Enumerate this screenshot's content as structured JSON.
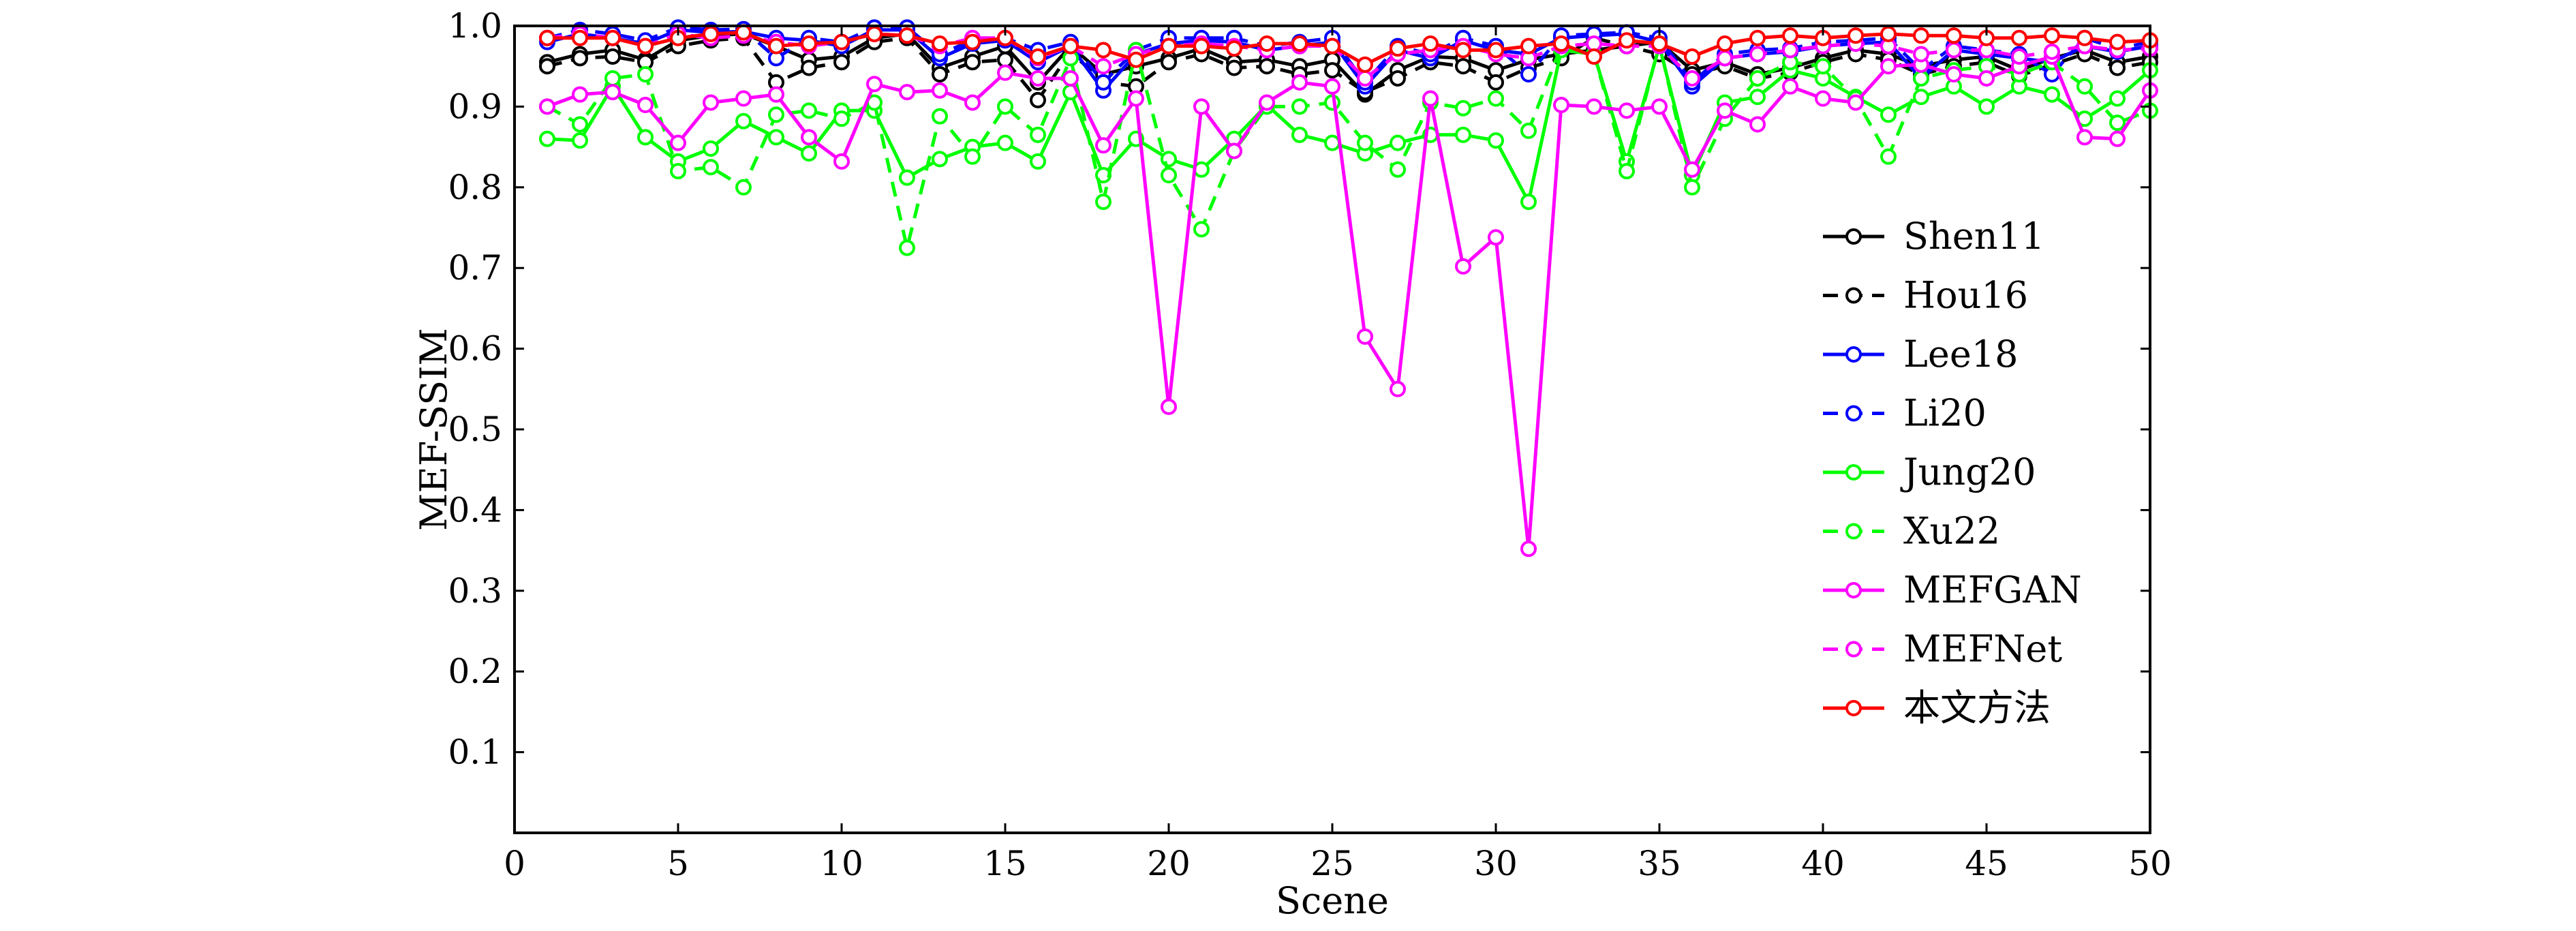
{
  "chart_data": {
    "type": "line",
    "title": "",
    "xlabel": "Scene",
    "ylabel": "MEF-SSIM",
    "xlim": [
      0,
      50
    ],
    "ylim": [
      0,
      1.0
    ],
    "x_ticks": [
      0,
      5,
      10,
      15,
      20,
      25,
      30,
      35,
      40,
      45,
      50
    ],
    "y_ticks": [
      0.1,
      0.2,
      0.3,
      0.4,
      0.5,
      0.6,
      0.7,
      0.8,
      0.9,
      1.0
    ],
    "grid": false,
    "legend_position": "right",
    "x": [
      1,
      2,
      3,
      4,
      5,
      6,
      7,
      8,
      9,
      10,
      11,
      12,
      13,
      14,
      15,
      16,
      17,
      18,
      19,
      20,
      21,
      22,
      23,
      24,
      25,
      26,
      27,
      28,
      29,
      30,
      31,
      32,
      33,
      34,
      35,
      36,
      37,
      38,
      39,
      40,
      41,
      42,
      43,
      44,
      45,
      46,
      47,
      48,
      49,
      50
    ],
    "series": [
      {
        "name": "Shen11",
        "color": "#000000",
        "dash": "solid",
        "values": [
          0.955,
          0.965,
          0.97,
          0.958,
          0.982,
          0.988,
          0.99,
          0.975,
          0.958,
          0.962,
          0.985,
          0.99,
          0.948,
          0.962,
          0.975,
          0.93,
          0.975,
          0.94,
          0.95,
          0.96,
          0.972,
          0.955,
          0.958,
          0.95,
          0.958,
          0.915,
          0.945,
          0.962,
          0.96,
          0.945,
          0.958,
          0.965,
          0.97,
          0.975,
          0.98,
          0.945,
          0.955,
          0.94,
          0.948,
          0.96,
          0.97,
          0.965,
          0.95,
          0.958,
          0.962,
          0.945,
          0.96,
          0.97,
          0.955,
          0.962
        ]
      },
      {
        "name": "Hou16",
        "color": "#000000",
        "dash": "dashed",
        "values": [
          0.95,
          0.96,
          0.962,
          0.955,
          0.975,
          0.982,
          0.985,
          0.93,
          0.948,
          0.955,
          0.98,
          0.985,
          0.94,
          0.955,
          0.958,
          0.908,
          0.968,
          0.93,
          0.925,
          0.955,
          0.965,
          0.948,
          0.95,
          0.94,
          0.945,
          0.918,
          0.935,
          0.955,
          0.95,
          0.93,
          0.948,
          0.96,
          0.985,
          0.975,
          0.965,
          0.94,
          0.95,
          0.935,
          0.942,
          0.955,
          0.965,
          0.958,
          0.94,
          0.95,
          0.955,
          0.938,
          0.952,
          0.965,
          0.948,
          0.955
        ]
      },
      {
        "name": "Lee18",
        "color": "#0000ff",
        "dash": "solid",
        "values": [
          0.98,
          0.99,
          0.985,
          0.978,
          0.995,
          0.992,
          0.993,
          0.985,
          0.982,
          0.975,
          0.995,
          0.995,
          0.96,
          0.978,
          0.982,
          0.955,
          0.975,
          0.92,
          0.965,
          0.978,
          0.982,
          0.98,
          0.97,
          0.975,
          0.98,
          0.925,
          0.97,
          0.96,
          0.982,
          0.97,
          0.965,
          0.985,
          0.988,
          0.99,
          0.98,
          0.925,
          0.96,
          0.965,
          0.968,
          0.975,
          0.978,
          0.98,
          0.935,
          0.97,
          0.965,
          0.96,
          0.955,
          0.975,
          0.968,
          0.975
        ]
      },
      {
        "name": "Li20",
        "color": "#0000ff",
        "dash": "dashed",
        "values": [
          0.985,
          0.995,
          0.99,
          0.982,
          0.998,
          0.995,
          0.996,
          0.96,
          0.985,
          0.98,
          0.998,
          0.998,
          0.965,
          0.982,
          0.985,
          0.97,
          0.98,
          0.93,
          0.97,
          0.985,
          0.985,
          0.985,
          0.975,
          0.98,
          0.985,
          0.93,
          0.975,
          0.965,
          0.985,
          0.975,
          0.94,
          0.988,
          0.99,
          0.992,
          0.985,
          0.93,
          0.965,
          0.97,
          0.972,
          0.98,
          0.982,
          0.985,
          0.945,
          0.975,
          0.97,
          0.965,
          0.94,
          0.985,
          0.972,
          0.98
        ]
      },
      {
        "name": "Jung20",
        "color": "#00ff00",
        "dash": "solid",
        "values": [
          0.86,
          0.858,
          0.925,
          0.862,
          0.832,
          0.848,
          0.882,
          0.862,
          0.842,
          0.895,
          0.895,
          0.812,
          0.835,
          0.85,
          0.855,
          0.832,
          0.918,
          0.815,
          0.86,
          0.835,
          0.822,
          0.86,
          0.902,
          0.865,
          0.855,
          0.842,
          0.855,
          0.865,
          0.865,
          0.858,
          0.782,
          0.97,
          0.965,
          0.832,
          0.975,
          0.815,
          0.905,
          0.912,
          0.945,
          0.935,
          0.912,
          0.89,
          0.912,
          0.925,
          0.9,
          0.925,
          0.915,
          0.885,
          0.91,
          0.945
        ]
      },
      {
        "name": "Xu22",
        "color": "#00ff00",
        "dash": "dashed",
        "values": [
          0.9,
          0.878,
          0.935,
          0.94,
          0.82,
          0.825,
          0.8,
          0.89,
          0.895,
          0.885,
          0.905,
          0.725,
          0.888,
          0.838,
          0.9,
          0.865,
          0.96,
          0.782,
          0.97,
          0.815,
          0.748,
          0.845,
          0.9,
          0.9,
          0.905,
          0.855,
          0.822,
          0.905,
          0.898,
          0.91,
          0.87,
          0.975,
          0.965,
          0.82,
          0.978,
          0.8,
          0.885,
          0.935,
          0.955,
          0.95,
          0.91,
          0.838,
          0.935,
          0.945,
          0.95,
          0.94,
          0.955,
          0.925,
          0.88,
          0.895
        ]
      },
      {
        "name": "MEFGAN",
        "color": "#ff00ff",
        "dash": "solid",
        "values": [
          0.9,
          0.915,
          0.918,
          0.902,
          0.855,
          0.905,
          0.91,
          0.915,
          0.862,
          0.832,
          0.928,
          0.918,
          0.92,
          0.905,
          0.942,
          0.935,
          0.935,
          0.852,
          0.91,
          0.528,
          0.9,
          0.845,
          0.905,
          0.93,
          0.925,
          0.615,
          0.55,
          0.91,
          0.702,
          0.738,
          0.352,
          0.902,
          0.9,
          0.895,
          0.9,
          0.822,
          0.895,
          0.878,
          0.925,
          0.91,
          0.905,
          0.95,
          0.952,
          0.94,
          0.935,
          0.95,
          0.962,
          0.862,
          0.86,
          0.92
        ]
      },
      {
        "name": "MEFNet",
        "color": "#ff00ff",
        "dash": "dashed",
        "values": [
          0.985,
          0.99,
          0.985,
          0.975,
          0.99,
          0.985,
          0.988,
          0.98,
          0.975,
          0.98,
          0.99,
          0.988,
          0.975,
          0.985,
          0.985,
          0.96,
          0.975,
          0.95,
          0.965,
          0.975,
          0.978,
          0.975,
          0.97,
          0.975,
          0.975,
          0.935,
          0.965,
          0.97,
          0.975,
          0.965,
          0.96,
          0.975,
          0.978,
          0.975,
          0.975,
          0.935,
          0.96,
          0.965,
          0.97,
          0.975,
          0.978,
          0.975,
          0.965,
          0.97,
          0.97,
          0.962,
          0.968,
          0.975,
          0.97,
          0.972
        ]
      },
      {
        "name": "本文方法",
        "color": "#ff0000",
        "dash": "solid",
        "values": [
          0.985,
          0.985,
          0.985,
          0.975,
          0.985,
          0.99,
          0.992,
          0.975,
          0.978,
          0.98,
          0.99,
          0.988,
          0.978,
          0.98,
          0.985,
          0.962,
          0.975,
          0.97,
          0.958,
          0.975,
          0.975,
          0.972,
          0.978,
          0.978,
          0.975,
          0.952,
          0.972,
          0.978,
          0.97,
          0.97,
          0.975,
          0.978,
          0.962,
          0.982,
          0.978,
          0.962,
          0.978,
          0.985,
          0.988,
          0.985,
          0.988,
          0.99,
          0.988,
          0.988,
          0.985,
          0.985,
          0.988,
          0.985,
          0.98,
          0.982
        ]
      }
    ]
  }
}
